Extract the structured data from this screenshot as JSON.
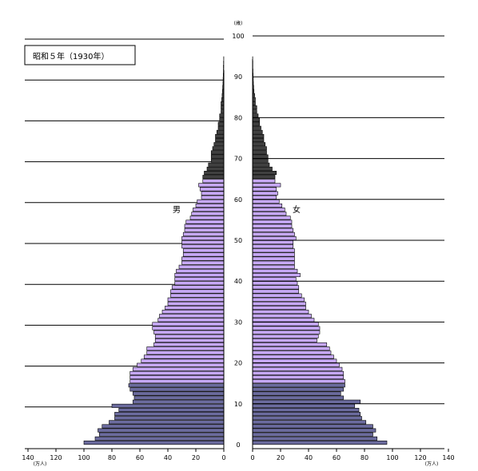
{
  "chart_data": {
    "type": "bar",
    "title": "昭和５年（1930年）",
    "age_unit": "(歳)",
    "value_unit": "(万人)",
    "ages": [
      0,
      1,
      2,
      3,
      4,
      5,
      6,
      7,
      8,
      9,
      10,
      11,
      12,
      13,
      14,
      15,
      16,
      17,
      18,
      19,
      20,
      21,
      22,
      23,
      24,
      25,
      26,
      27,
      28,
      29,
      30,
      31,
      32,
      33,
      34,
      35,
      36,
      37,
      38,
      39,
      40,
      41,
      42,
      43,
      44,
      45,
      46,
      47,
      48,
      49,
      50,
      51,
      52,
      53,
      54,
      55,
      56,
      57,
      58,
      59,
      60,
      61,
      62,
      63,
      64,
      65,
      66,
      67,
      68,
      69,
      70,
      71,
      72,
      73,
      74,
      75,
      76,
      77,
      78,
      79,
      80,
      81,
      82,
      83,
      84,
      85,
      86,
      87,
      88,
      89,
      90,
      91,
      92,
      93,
      94
    ],
    "age_ticks": [
      0,
      10,
      20,
      30,
      40,
      50,
      60,
      70,
      80,
      90,
      100
    ],
    "value_ticks_male": [
      140,
      120,
      100,
      80,
      60,
      40,
      20,
      0
    ],
    "value_ticks_female": [
      0,
      20,
      40,
      60,
      80,
      100,
      120,
      140
    ],
    "value_range": [
      0,
      140
    ],
    "series": [
      {
        "name": "男",
        "values": [
          100,
          92,
          89,
          90,
          87,
          82,
          78,
          78,
          75,
          80,
          65,
          64,
          65,
          67,
          68,
          67,
          67,
          67,
          65,
          62,
          59,
          57,
          55,
          55,
          50,
          49,
          49,
          50,
          51,
          51,
          47,
          46,
          44,
          42,
          40,
          40,
          38,
          38,
          37,
          35,
          35,
          35,
          34,
          32,
          30,
          30,
          29,
          29,
          30,
          30,
          30,
          29,
          28,
          28,
          27,
          24,
          23,
          22,
          20,
          19,
          16,
          16,
          17,
          18,
          15,
          15,
          14,
          12,
          11,
          9,
          9,
          9,
          8,
          7,
          6,
          6,
          5,
          4,
          4,
          3,
          3,
          2,
          2,
          2,
          1.5,
          1.2,
          1,
          0.8,
          0.6,
          0.5,
          0.4,
          0.3,
          0.3,
          0.2,
          0.1
        ]
      },
      {
        "name": "女",
        "values": [
          96,
          89,
          86,
          88,
          86,
          81,
          78,
          77,
          76,
          73,
          77,
          65,
          63,
          65,
          66,
          66,
          65,
          65,
          64,
          62,
          60,
          58,
          56,
          55,
          53,
          46,
          47,
          48,
          48,
          47,
          44,
          42,
          40,
          38,
          38,
          37,
          35,
          33,
          33,
          32,
          31,
          34,
          32,
          30,
          30,
          30,
          30,
          30,
          29,
          29,
          31,
          30,
          29,
          28,
          28,
          27,
          24,
          23,
          21,
          19,
          17,
          18,
          17,
          20,
          16,
          16,
          17,
          14,
          12,
          11,
          11,
          10,
          10,
          9,
          8,
          8,
          7,
          6,
          5,
          5,
          4,
          3,
          3,
          2,
          2,
          1.5,
          1,
          0.8,
          0.6,
          0.5,
          0.4,
          0.3,
          0.2,
          0.2,
          0.1
        ]
      }
    ],
    "colors": {
      "under15": "#6b6b9e",
      "working": "#c6a8f5",
      "elderly": "#404040",
      "outline": "#000000"
    }
  }
}
